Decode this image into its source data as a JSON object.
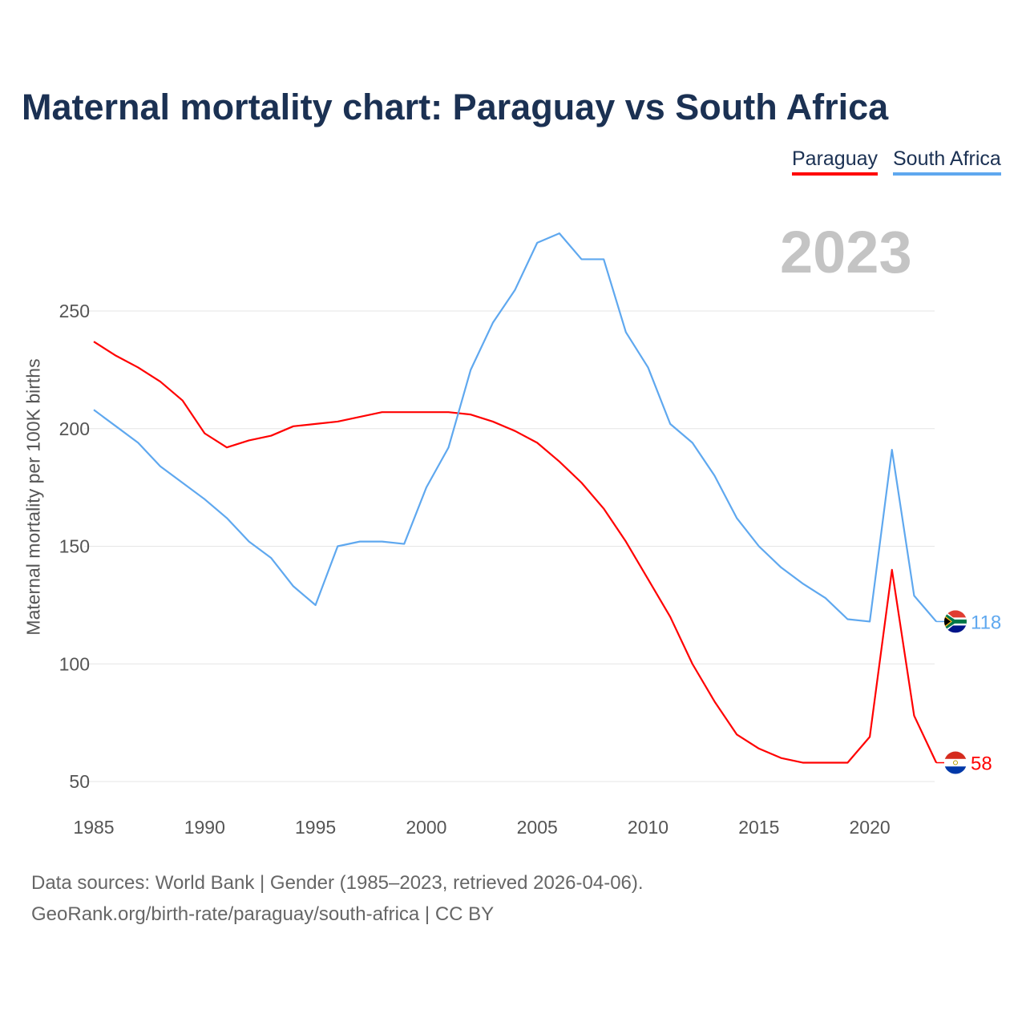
{
  "chart_data": {
    "type": "line",
    "title": "Maternal mortality chart: Paraguay vs South Africa",
    "year_label": "2023",
    "xlabel": "",
    "ylabel": "Maternal mortality per 100K births",
    "xlim": [
      1985,
      2023
    ],
    "ylim": [
      50,
      290
    ],
    "x_ticks": [
      "1985",
      "1990",
      "1995",
      "2000",
      "2005",
      "2010",
      "2015",
      "2020"
    ],
    "y_ticks": [
      "50",
      "100",
      "150",
      "200",
      "250"
    ],
    "grid": true,
    "legend_position": "top-right",
    "x": [
      1985,
      1986,
      1987,
      1988,
      1989,
      1990,
      1991,
      1992,
      1993,
      1994,
      1995,
      1996,
      1997,
      1998,
      1999,
      2000,
      2001,
      2002,
      2003,
      2004,
      2005,
      2006,
      2007,
      2008,
      2009,
      2010,
      2011,
      2012,
      2013,
      2014,
      2015,
      2016,
      2017,
      2018,
      2019,
      2020,
      2021,
      2022,
      2023
    ],
    "series": [
      {
        "name": "Paraguay",
        "color": "#ff0000",
        "end_label": "58",
        "values": [
          237,
          231,
          226,
          220,
          212,
          198,
          192,
          195,
          197,
          201,
          202,
          203,
          205,
          207,
          207,
          207,
          207,
          206,
          203,
          199,
          194,
          186,
          177,
          166,
          152,
          136,
          120,
          100,
          84,
          70,
          64,
          60,
          58,
          58,
          58,
          69,
          140,
          78,
          58
        ]
      },
      {
        "name": "South Africa",
        "color": "#5fa8ef",
        "end_label": "118",
        "values": [
          208,
          201,
          194,
          184,
          177,
          170,
          162,
          152,
          145,
          133,
          125,
          150,
          152,
          152,
          151,
          175,
          192,
          225,
          245,
          259,
          279,
          283,
          272,
          272,
          241,
          226,
          202,
          194,
          180,
          162,
          150,
          141,
          134,
          128,
          119,
          118,
          191,
          129,
          118
        ]
      }
    ]
  },
  "footer": {
    "line1": "Data sources: World Bank | Gender (1985–2023, retrieved 2026-04-06).",
    "line2": "GeoRank.org/birth-rate/paraguay/south-africa | CC BY"
  }
}
